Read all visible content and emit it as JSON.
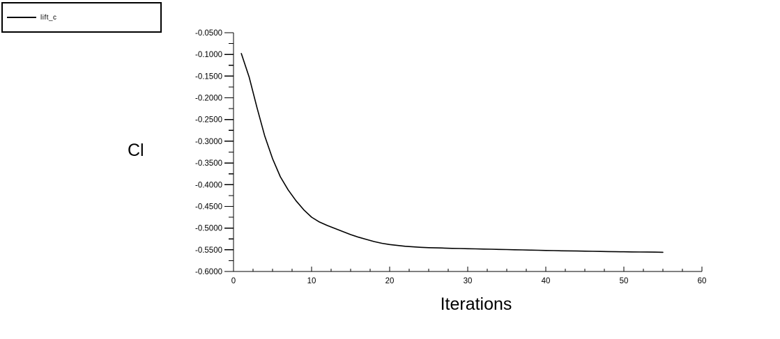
{
  "colors": {
    "background": "#ffffff",
    "axis": "#000000",
    "text": "#000000",
    "curve": "#000000",
    "legend_border": "#000000"
  },
  "legend": {
    "entries": [
      {
        "label": "lift_c",
        "line_color": "#000000"
      }
    ]
  },
  "chart_data": {
    "type": "line",
    "title": "",
    "xlabel": "Iterations",
    "ylabel": "Cl",
    "xlim": [
      0,
      60
    ],
    "ylim": [
      -0.6,
      -0.05
    ],
    "grid": false,
    "legend_position": "top-left-outside",
    "x_tick_labels": [
      "0",
      "10",
      "20",
      "30",
      "40",
      "50",
      "60"
    ],
    "x_minor_divisions": 4,
    "y_tick_labels": [
      "-0.0500",
      "-0.1000",
      "-0.1500",
      "-0.2000",
      "-0.2500",
      "-0.3000",
      "-0.3500",
      "-0.4000",
      "-0.4500",
      "-0.5000",
      "-0.5500",
      "-0.6000"
    ],
    "y_minor_divisions": 2,
    "series": [
      {
        "name": "lift_c",
        "color": "#000000",
        "x": [
          1,
          2,
          3,
          4,
          5,
          6,
          7,
          8,
          9,
          10,
          11,
          12,
          13,
          14,
          15,
          16,
          17,
          18,
          19,
          20,
          21,
          22,
          23,
          24,
          25,
          26,
          27,
          28,
          29,
          30,
          31,
          32,
          33,
          34,
          35,
          36,
          37,
          38,
          39,
          40,
          41,
          42,
          43,
          44,
          45,
          46,
          47,
          48,
          49,
          50,
          51,
          52,
          53,
          54,
          55
        ],
        "values": [
          -0.098,
          -0.152,
          -0.222,
          -0.288,
          -0.34,
          -0.382,
          -0.412,
          -0.437,
          -0.458,
          -0.475,
          -0.486,
          -0.494,
          -0.501,
          -0.508,
          -0.515,
          -0.521,
          -0.526,
          -0.531,
          -0.535,
          -0.538,
          -0.54,
          -0.542,
          -0.5433,
          -0.5443,
          -0.5451,
          -0.5457,
          -0.5462,
          -0.5467,
          -0.5471,
          -0.5475,
          -0.5479,
          -0.5483,
          -0.5487,
          -0.5491,
          -0.5495,
          -0.5499,
          -0.5503,
          -0.5507,
          -0.5511,
          -0.5515,
          -0.5519,
          -0.5523,
          -0.5526,
          -0.5529,
          -0.5532,
          -0.5535,
          -0.5538,
          -0.5541,
          -0.5544,
          -0.5547,
          -0.5549,
          -0.5551,
          -0.5553,
          -0.5555,
          -0.5557
        ]
      }
    ]
  }
}
